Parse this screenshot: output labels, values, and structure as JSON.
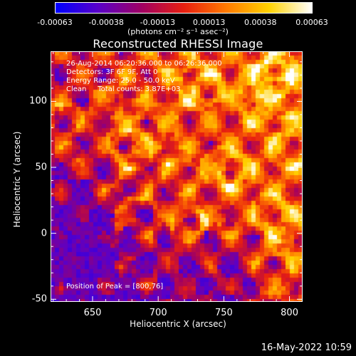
{
  "colorbar": {
    "ticks": [
      "-0.00063",
      "-0.00038",
      "-0.00013",
      "0.00013",
      "0.00038",
      "0.00063"
    ],
    "unit": "(photons cm⁻² s⁻¹ asec⁻²)",
    "colormap": [
      "#0000ff",
      "#5a00c8",
      "#a00064",
      "#e81f10",
      "#ff7a00",
      "#ffd200",
      "#ffffff"
    ]
  },
  "chart_data": {
    "type": "heatmap",
    "title": "Reconstructed RHESSI Image",
    "xlabel": "Heliocentric X (arcsec)",
    "ylabel": "Heliocentric Y (arcsec)",
    "xlim": [
      618,
      810
    ],
    "ylim": [
      -52,
      138
    ],
    "xticks": [
      650,
      700,
      750,
      800
    ],
    "yticks": [
      -50,
      0,
      50,
      100
    ],
    "value_range": [
      -0.00063,
      0.00063
    ],
    "annotations": [
      "26-Aug-2014 06:20:36.000 to 06:26:36.000",
      "Detectors: 3F 6F 9F, Att 0",
      "Energy Range: 25.0 - 50.0 keV",
      "Clean     Total counts: 3.87E+03"
    ],
    "peak_label": "Position of Peak = [800,76]",
    "peak": [
      800,
      76
    ]
  },
  "footer": {
    "date": "16-May-2022 10:59"
  }
}
